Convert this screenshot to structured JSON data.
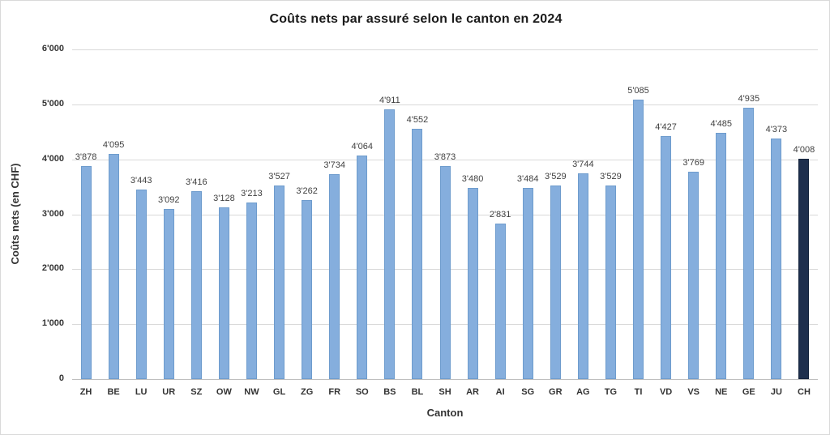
{
  "chart_data": {
    "type": "bar",
    "title": "Coûts nets par assuré selon le canton en 2024",
    "xlabel": "Canton",
    "ylabel": "Coûts nets (en CHF)",
    "ylim": [
      0,
      6000
    ],
    "ytick_interval": 1000,
    "ytick_labels": [
      "0",
      "1'000",
      "2'000",
      "3'000",
      "4'000",
      "5'000",
      "6'000"
    ],
    "grid": true,
    "legend": "none",
    "categories": [
      "ZH",
      "BE",
      "LU",
      "UR",
      "SZ",
      "OW",
      "NW",
      "GL",
      "ZG",
      "FR",
      "SO",
      "BS",
      "BL",
      "SH",
      "AR",
      "AI",
      "SG",
      "GR",
      "AG",
      "TG",
      "TI",
      "VD",
      "VS",
      "NE",
      "GE",
      "JU",
      "CH"
    ],
    "values": [
      3878,
      4095,
      3443,
      3092,
      3416,
      3128,
      3213,
      3527,
      3262,
      3734,
      4064,
      4911,
      4552,
      3873,
      3480,
      2831,
      3484,
      3529,
      3744,
      3529,
      5085,
      4427,
      3769,
      4485,
      4935,
      4373,
      4008
    ],
    "value_labels": [
      "3'878",
      "4'095",
      "3'443",
      "3'092",
      "3'416",
      "3'128",
      "3'213",
      "3'527",
      "3'262",
      "3'734",
      "4'064",
      "4'911",
      "4'552",
      "3'873",
      "3'480",
      "2'831",
      "3'484",
      "3'529",
      "3'744",
      "3'529",
      "5'085",
      "4'427",
      "3'769",
      "4'485",
      "4'935",
      "4'373",
      "4'008"
    ],
    "bar_color": "#85aedd",
    "bar_border_color": "#6e9ccd",
    "highlight_category": "CH",
    "highlight_color": "#1e2f4d",
    "highlight_border_color": "#14233c",
    "gridline_color": "#d9d9d9"
  }
}
